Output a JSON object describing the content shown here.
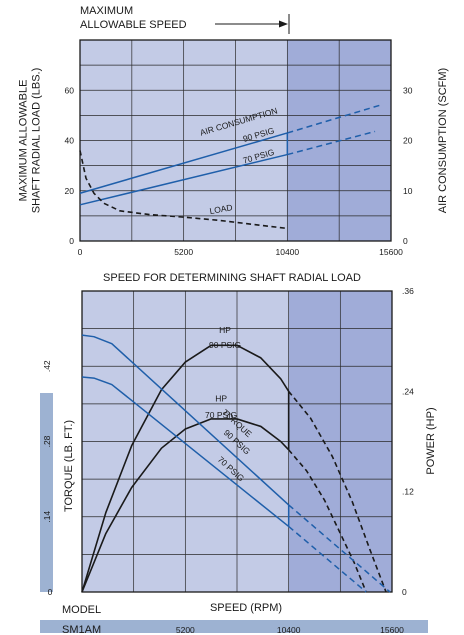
{
  "header": {
    "max_speed_line1": "MAXIMUM",
    "max_speed_line2": "ALLOWABLE SPEED"
  },
  "between_title": "SPEED FOR DETERMINING SHAFT RADIAL LOAD",
  "footer": {
    "model_label": "MODEL",
    "model_name": "SM1AM"
  },
  "colors": {
    "zone_low": "#c3cbe6",
    "zone_high": "#a0acd8",
    "blue_line": "#1f5faa",
    "black_line": "#1a1a1a",
    "torque_strip": "#9db2d2"
  },
  "chart_data": [
    {
      "type": "line",
      "xlabel": "",
      "ylabel_left": "MAXIMUM ALLOWABLE SHAFT RADIAL LOAD (LBS.)",
      "ylabel_right": "AIR CONSUMPTION (SCFM)",
      "x_ticks": [
        0,
        5200,
        10400,
        15600
      ],
      "y_left_ticks": [
        0,
        20,
        40,
        60
      ],
      "y_right_ticks": [
        0,
        10,
        20,
        30
      ],
      "xlim": [
        0,
        15600
      ],
      "ylim_left": [
        0,
        80
      ],
      "ylim_right": [
        0,
        40
      ],
      "max_allowable_speed": 10400,
      "grid": true,
      "series": [
        {
          "name": "AIR CONSUMPTION 90 PSIG",
          "axis": "right",
          "style": "solid-then-dashed",
          "x": [
            0,
            10400,
            15200
          ],
          "y": [
            9.5,
            21.5,
            27.2
          ]
        },
        {
          "name": "AIR CONSUMPTION 70 PSIG",
          "axis": "right",
          "style": "solid-then-dashed",
          "x": [
            0,
            10400,
            14800
          ],
          "y": [
            7.2,
            17.2,
            21.8
          ]
        },
        {
          "name": "LOAD",
          "axis": "left",
          "style": "dashed",
          "x": [
            0,
            300,
            700,
            1200,
            2000,
            3500,
            5200,
            7000,
            8800,
            10400
          ],
          "y": [
            36,
            25,
            19,
            15,
            12,
            10.5,
            9.5,
            8.2,
            6.5,
            5
          ]
        }
      ],
      "annotations": [
        {
          "text": "AIR CONSUMPTION",
          "x": 8000,
          "y": 23.2,
          "axis": "right"
        },
        {
          "text": "90 PSIG",
          "x": 9000,
          "y": 20.6,
          "axis": "right"
        },
        {
          "text": "70 PSIG",
          "x": 9000,
          "y": 16.3,
          "axis": "right"
        },
        {
          "text": "LOAD",
          "x": 7100,
          "y": 11.5,
          "axis": "left"
        }
      ]
    },
    {
      "type": "line",
      "xlabel": "SPEED (RPM)",
      "ylabel_left": "TORQUE (LB. FT.)",
      "ylabel_right": "POWER (HP)",
      "x_ticks": [
        5200,
        10400,
        15600
      ],
      "y_left_ticks": [
        0,
        0.14,
        0.28,
        0.42
      ],
      "y_left_tick_labels": [
        "0",
        ".14",
        ".28",
        ".42"
      ],
      "y_right_ticks": [
        0,
        0.12,
        0.24,
        0.36
      ],
      "y_right_tick_labels": [
        "0",
        ".12",
        ".24",
        ".36"
      ],
      "xlim": [
        0,
        15600
      ],
      "ylim_left": [
        0,
        0.56
      ],
      "ylim_right": [
        0,
        0.36
      ],
      "max_allowable_speed": 10400,
      "grid": true,
      "series": [
        {
          "name": "HP 90 PSIG",
          "axis": "right",
          "style": "solid",
          "x_stop": 10400,
          "x": [
            0,
            1200,
            2500,
            4000,
            5200,
            6500,
            7800,
            9000,
            10000,
            10400
          ],
          "y": [
            0,
            0.095,
            0.175,
            0.242,
            0.275,
            0.295,
            0.295,
            0.28,
            0.255,
            0.24
          ]
        },
        {
          "name": "HP 90 PSIG (above max speed)",
          "axis": "right",
          "style": "dashed",
          "x": [
            10400,
            11500,
            12600,
            13600,
            14500,
            15300
          ],
          "y": [
            0.24,
            0.208,
            0.162,
            0.108,
            0.05,
            0
          ]
        },
        {
          "name": "HP 70 PSIG",
          "axis": "right",
          "style": "solid",
          "x_stop": 10400,
          "x": [
            0,
            1200,
            2500,
            4000,
            5200,
            6500,
            7800,
            9000,
            10000,
            10400
          ],
          "y": [
            0,
            0.07,
            0.125,
            0.172,
            0.195,
            0.207,
            0.207,
            0.198,
            0.18,
            0.17
          ]
        },
        {
          "name": "HP 70 PSIG (above max speed)",
          "axis": "right",
          "style": "dashed",
          "x": [
            10400,
            11300,
            12200,
            13000,
            13700,
            14300
          ],
          "y": [
            0.17,
            0.145,
            0.11,
            0.07,
            0.035,
            0
          ]
        },
        {
          "name": "TORQUE 90 PSIG",
          "axis": "left",
          "style": "solid-then-dashed",
          "x": [
            0,
            600,
            1500,
            10400,
            15500
          ],
          "y": [
            0.478,
            0.475,
            0.462,
            0.162,
            0
          ]
        },
        {
          "name": "TORQUE 70 PSIG",
          "axis": "left",
          "style": "solid-then-dashed",
          "x": [
            0,
            600,
            1500,
            10400,
            14300
          ],
          "y": [
            0.4,
            0.398,
            0.386,
            0.122,
            0
          ]
        }
      ],
      "annotations": [
        {
          "text": "HP",
          "x": 7200,
          "y": 0.31,
          "axis": "right"
        },
        {
          "text": "90 PSIG",
          "x": 7200,
          "y": 0.292,
          "axis": "right"
        },
        {
          "text": "HP",
          "x": 7000,
          "y": 0.228,
          "axis": "right"
        },
        {
          "text": "70 PSIG",
          "x": 7000,
          "y": 0.208,
          "axis": "right"
        },
        {
          "text": "TORQUE",
          "x": 7700,
          "y": 0.31,
          "axis": "left"
        },
        {
          "text": "90 PSIG",
          "x": 7700,
          "y": 0.275,
          "axis": "left"
        },
        {
          "text": "70 PSIG",
          "x": 7400,
          "y": 0.225,
          "axis": "left"
        }
      ]
    }
  ]
}
